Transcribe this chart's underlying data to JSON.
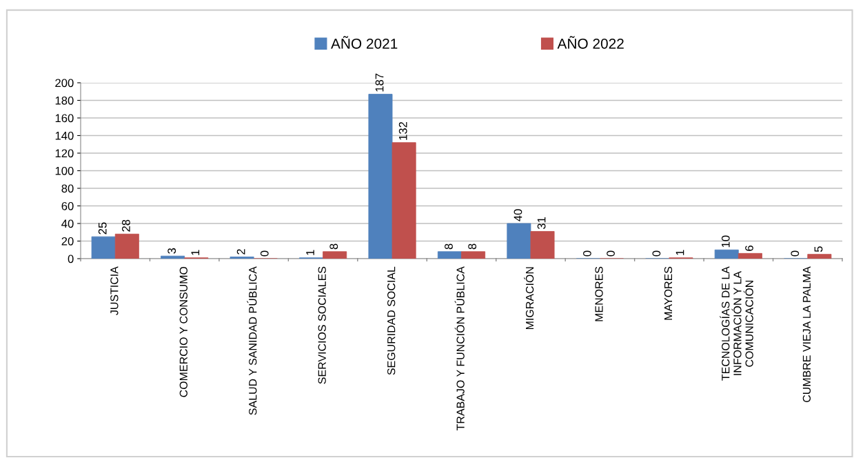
{
  "chart_data": {
    "type": "bar",
    "categories": [
      "JUSTICIA",
      "COMERCIO Y CONSUMO",
      "SALUD Y SANIDAD PÚBLICA",
      "SERVICIOS SOCIALES",
      "SEGURIDAD SOCIAL",
      "TRABAJO Y FUNCIÓN PÚBLICA",
      "MIGRACIÓN",
      "MENORES",
      "MAYORES",
      "TECNOLOGÍAS DE LA\nINFORMACIÓN Y LA\nCOMUNICACIÓN",
      "CUMBRE VIEJA LA PALMA"
    ],
    "series": [
      {
        "name": "AÑO 2021",
        "color": "#4f81bd",
        "values": [
          25,
          3,
          2,
          1,
          187,
          8,
          40,
          0,
          0,
          10,
          0
        ]
      },
      {
        "name": "AÑO 2022",
        "color": "#c0504d",
        "values": [
          28,
          1,
          0,
          8,
          132,
          8,
          31,
          0,
          1,
          6,
          5
        ]
      }
    ],
    "ylim": [
      0,
      200
    ],
    "yticks": [
      0,
      20,
      40,
      60,
      80,
      100,
      120,
      140,
      160,
      180,
      200
    ],
    "grid": "y",
    "legend": "top",
    "data_labels": true
  }
}
